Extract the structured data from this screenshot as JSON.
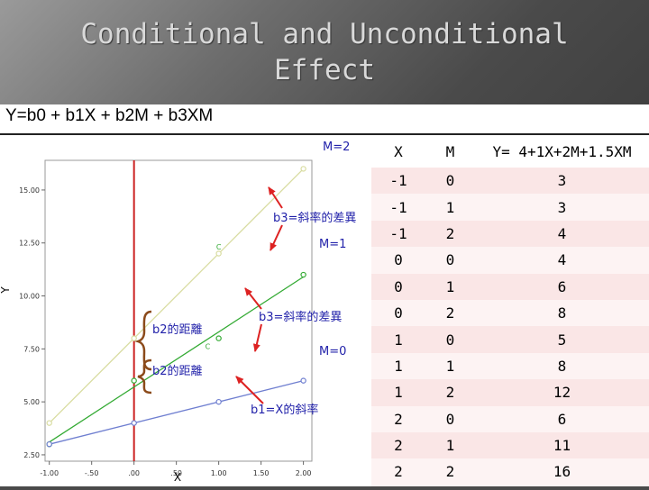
{
  "slide": {
    "title_line1": "Conditional and Unconditional",
    "title_line2": "Effect",
    "equation": "Y=b0 + b1X + b2M + b3XM"
  },
  "chart_data": {
    "type": "scatter",
    "xlabel": "X",
    "ylabel": "Y",
    "xlim": [
      -1.05,
      2.1
    ],
    "ylim": [
      2.2,
      16.4
    ],
    "xticks": [
      "-1.00",
      "-.50",
      ".00",
      ".50",
      "1.00",
      "1.50",
      "2.00"
    ],
    "xtick_values": [
      -1,
      -0.5,
      0,
      0.5,
      1,
      1.5,
      2
    ],
    "yticks": [
      "2.50",
      "5.00",
      "7.50",
      "10.00",
      "12.50",
      "15.00"
    ],
    "ytick_values": [
      2.5,
      5,
      7.5,
      10,
      12.5,
      15
    ],
    "vline_x": 0,
    "series": [
      {
        "name": "M=2",
        "color": "#d8dca0",
        "x": [
          -1,
          0,
          1,
          2
        ],
        "y": [
          4,
          8,
          12,
          16
        ]
      },
      {
        "name": "M=1",
        "color": "#33aa33",
        "x": [
          -1,
          0,
          1,
          2
        ],
        "y": [
          3,
          6,
          8,
          11
        ]
      },
      {
        "name": "M=0",
        "color": "#6f7fd0",
        "x": [
          -1,
          0,
          1,
          2
        ],
        "y": [
          3,
          4,
          5,
          6
        ]
      }
    ],
    "point_labels": [
      {
        "text": "C",
        "x": 1,
        "y": 12.2
      },
      {
        "text": "C",
        "x": 0.87,
        "y": 7.5
      }
    ],
    "annotations": {
      "m2": "M=2",
      "m1": "M=1",
      "m0": "M=0",
      "b3_top": "b3=斜率的差異",
      "b3_mid": "b3=斜率的差異",
      "b2_top": "b2的距離",
      "b2_bot": "b2的距離",
      "b1": "b1=X的斜率"
    },
    "colors": {
      "vline": "#cc2222",
      "annotation_text": "#2222aa",
      "arrow": "#dd2222",
      "brace": "#8b4a1a"
    }
  },
  "table": {
    "headers": [
      "X",
      "M",
      "Y= 4+1X+2M+1.5XM"
    ],
    "rows": [
      [
        "-1",
        "0",
        "3"
      ],
      [
        "-1",
        "1",
        "3"
      ],
      [
        "-1",
        "2",
        "4"
      ],
      [
        "0",
        "0",
        "4"
      ],
      [
        "0",
        "1",
        "6"
      ],
      [
        "0",
        "2",
        "8"
      ],
      [
        "1",
        "0",
        "5"
      ],
      [
        "1",
        "1",
        "8"
      ],
      [
        "1",
        "2",
        "12"
      ],
      [
        "2",
        "0",
        "6"
      ],
      [
        "2",
        "1",
        "11"
      ],
      [
        "2",
        "2",
        "16"
      ]
    ]
  }
}
